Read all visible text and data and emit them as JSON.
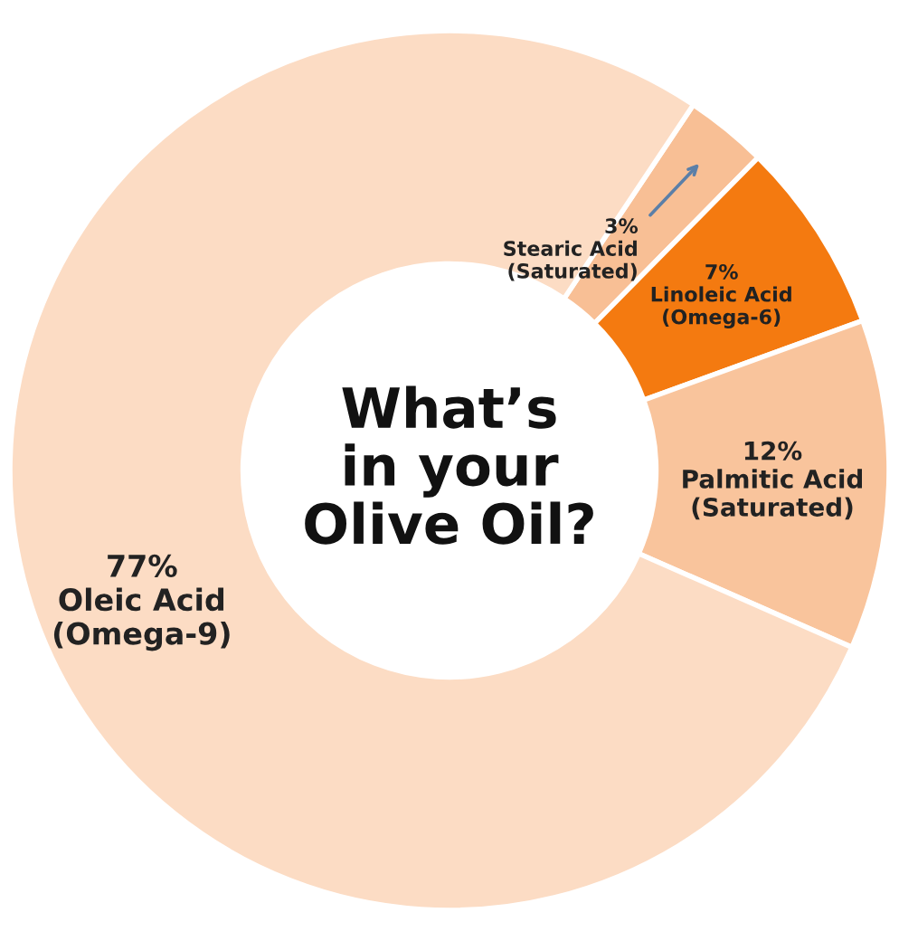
{
  "chart_data": {
    "type": "donut",
    "title": "What’s\nin your\nOlive Oil?",
    "categories": [
      "Stearic Acid\n(Saturated)",
      "Linoleic Acid\n(Omega-6)",
      "Palmitic Acid\n(Saturated)",
      "Oleic Acid\n(Omega-9)"
    ],
    "values": [
      3,
      7,
      12,
      77
    ],
    "value_labels": [
      "3%",
      "7%",
      "12%",
      "77%"
    ],
    "colors": [
      "#f8bf95",
      "#f47a10",
      "#f9c49c",
      "#fcdcc4"
    ],
    "legend": false
  }
}
